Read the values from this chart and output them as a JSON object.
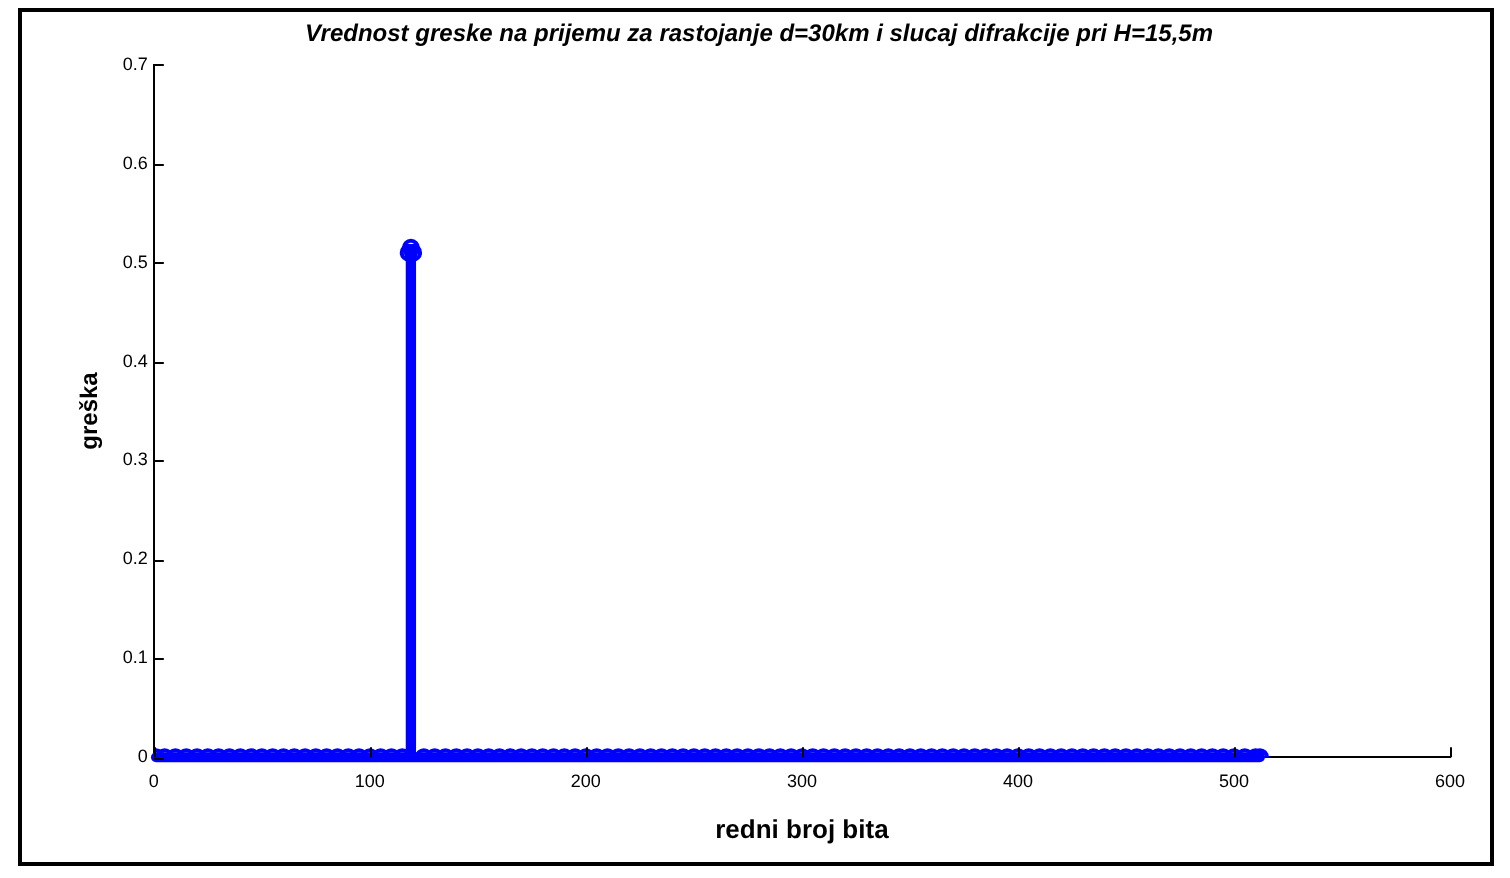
{
  "chart_data": {
    "type": "lollipop",
    "title": "Vrednost greske na prijemu za rastojanje d=30km i slucaj difrakcije pri H=15,5m",
    "xlabel": "redni broj bita",
    "ylabel": "greška",
    "x": [
      1,
      5,
      10,
      15,
      20,
      25,
      30,
      35,
      40,
      45,
      50,
      55,
      60,
      65,
      70,
      75,
      80,
      85,
      90,
      95,
      100,
      105,
      110,
      115,
      118,
      119,
      120,
      125,
      130,
      135,
      140,
      145,
      150,
      155,
      160,
      165,
      170,
      175,
      180,
      185,
      190,
      195,
      200,
      205,
      210,
      215,
      220,
      225,
      230,
      235,
      240,
      245,
      250,
      255,
      260,
      265,
      270,
      275,
      280,
      285,
      290,
      295,
      300,
      305,
      310,
      315,
      320,
      325,
      330,
      335,
      340,
      345,
      350,
      355,
      360,
      365,
      370,
      375,
      380,
      385,
      390,
      395,
      400,
      405,
      410,
      415,
      420,
      425,
      430,
      435,
      440,
      445,
      450,
      455,
      460,
      465,
      470,
      475,
      480,
      485,
      490,
      495,
      500,
      505,
      510,
      512
    ],
    "values": [
      0,
      0,
      0,
      0,
      0,
      0,
      0,
      0,
      0,
      0,
      0,
      0,
      0,
      0,
      0,
      0,
      0,
      0,
      0,
      0,
      0,
      0,
      0,
      0,
      0.51,
      0.515,
      0.51,
      0,
      0,
      0,
      0,
      0,
      0,
      0,
      0,
      0,
      0,
      0,
      0,
      0,
      0,
      0,
      0,
      0,
      0,
      0,
      0,
      0,
      0,
      0,
      0,
      0,
      0,
      0,
      0,
      0,
      0,
      0,
      0,
      0,
      0,
      0,
      0,
      0,
      0,
      0,
      0,
      0,
      0,
      0,
      0,
      0,
      0,
      0,
      0,
      0,
      0,
      0,
      0,
      0,
      0,
      0,
      0,
      0,
      0,
      0,
      0,
      0,
      0,
      0,
      0,
      0,
      0,
      0,
      0,
      0,
      0,
      0,
      0,
      0,
      0,
      0,
      0,
      0,
      0,
      0
    ],
    "color": "#0000ff",
    "marker": "circle",
    "grid": false,
    "legend": false,
    "xlim": [
      0,
      600
    ],
    "xticks": [
      0,
      100,
      200,
      300,
      400,
      500,
      600
    ],
    "ylim": [
      0,
      0.7
    ],
    "yticks": [
      0,
      0.1,
      0.2,
      0.3,
      0.4,
      0.5,
      0.6,
      0.7
    ]
  }
}
